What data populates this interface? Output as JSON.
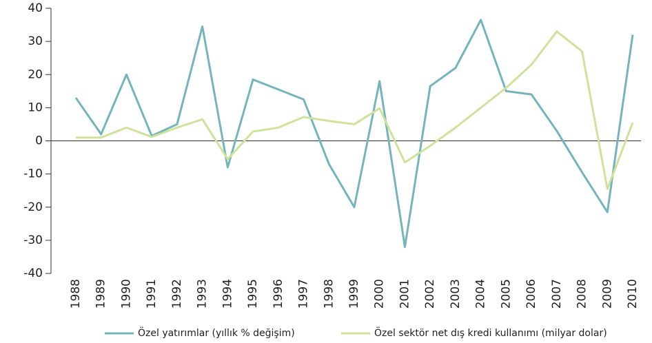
{
  "chart_data": {
    "type": "line",
    "categories": [
      "1988",
      "1989",
      "1990",
      "1991",
      "1992",
      "1993",
      "1994",
      "1995",
      "1996",
      "1997",
      "1998",
      "1999",
      "2000",
      "2001",
      "2002",
      "2003",
      "2004",
      "2005",
      "2006",
      "2007",
      "2008",
      "2009",
      "2010"
    ],
    "series": [
      {
        "name": "Özel yatırımlar (yıllık % değişim)",
        "color": "#74b4bd",
        "values": [
          13,
          2,
          20,
          1.5,
          5,
          34.5,
          -8,
          18.5,
          15.5,
          12.5,
          -7,
          -20,
          18,
          -32,
          16.5,
          22,
          36.5,
          15,
          14,
          3,
          -9.5,
          -21.5,
          32
        ]
      },
      {
        "name": "Özel sektör net dış kredi kullanımı (milyar dolar)",
        "color": "#cde29b",
        "values": [
          1,
          1,
          4,
          1.2,
          4,
          6.5,
          -5.5,
          2.8,
          4,
          7.2,
          6,
          5,
          9.8,
          -6.5,
          -1.5,
          4,
          10,
          16,
          23,
          33,
          27,
          -14.5,
          5.5
        ]
      }
    ],
    "ylim": [
      -40,
      40
    ],
    "yticks": [
      -40,
      -30,
      -20,
      -10,
      0,
      10,
      20,
      30,
      40
    ]
  }
}
